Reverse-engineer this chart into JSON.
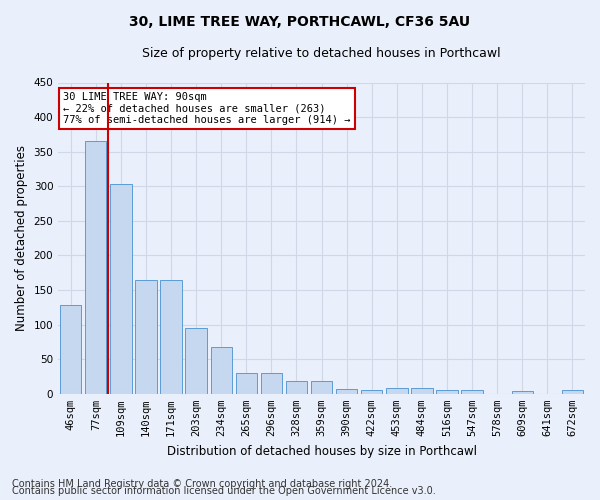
{
  "title1": "30, LIME TREE WAY, PORTHCAWL, CF36 5AU",
  "title2": "Size of property relative to detached houses in Porthcawl",
  "xlabel": "Distribution of detached houses by size in Porthcawl",
  "ylabel": "Number of detached properties",
  "categories": [
    "46sqm",
    "77sqm",
    "109sqm",
    "140sqm",
    "171sqm",
    "203sqm",
    "234sqm",
    "265sqm",
    "296sqm",
    "328sqm",
    "359sqm",
    "390sqm",
    "422sqm",
    "453sqm",
    "484sqm",
    "516sqm",
    "547sqm",
    "578sqm",
    "609sqm",
    "641sqm",
    "672sqm"
  ],
  "values": [
    128,
    365,
    303,
    165,
    165,
    95,
    68,
    30,
    30,
    18,
    18,
    7,
    6,
    9,
    9,
    5,
    5,
    0,
    4,
    0,
    5
  ],
  "bar_color": "#c5d8f0",
  "bar_edge_color": "#5b9bd5",
  "grid_color": "#d0d8e8",
  "background_color": "#eaf0fb",
  "annotation_box_text": "30 LIME TREE WAY: 90sqm\n← 22% of detached houses are smaller (263)\n77% of semi-detached houses are larger (914) →",
  "annotation_box_color": "#ffffff",
  "annotation_box_edge_color": "#cc0000",
  "red_line_color": "#cc0000",
  "red_line_x": 1.5,
  "ylim": [
    0,
    450
  ],
  "yticks": [
    0,
    50,
    100,
    150,
    200,
    250,
    300,
    350,
    400,
    450
  ],
  "footer1": "Contains HM Land Registry data © Crown copyright and database right 2024.",
  "footer2": "Contains public sector information licensed under the Open Government Licence v3.0.",
  "title_fontsize": 10,
  "subtitle_fontsize": 9,
  "axis_label_fontsize": 8.5,
  "tick_fontsize": 7.5,
  "annotation_fontsize": 7.5,
  "footer_fontsize": 7
}
